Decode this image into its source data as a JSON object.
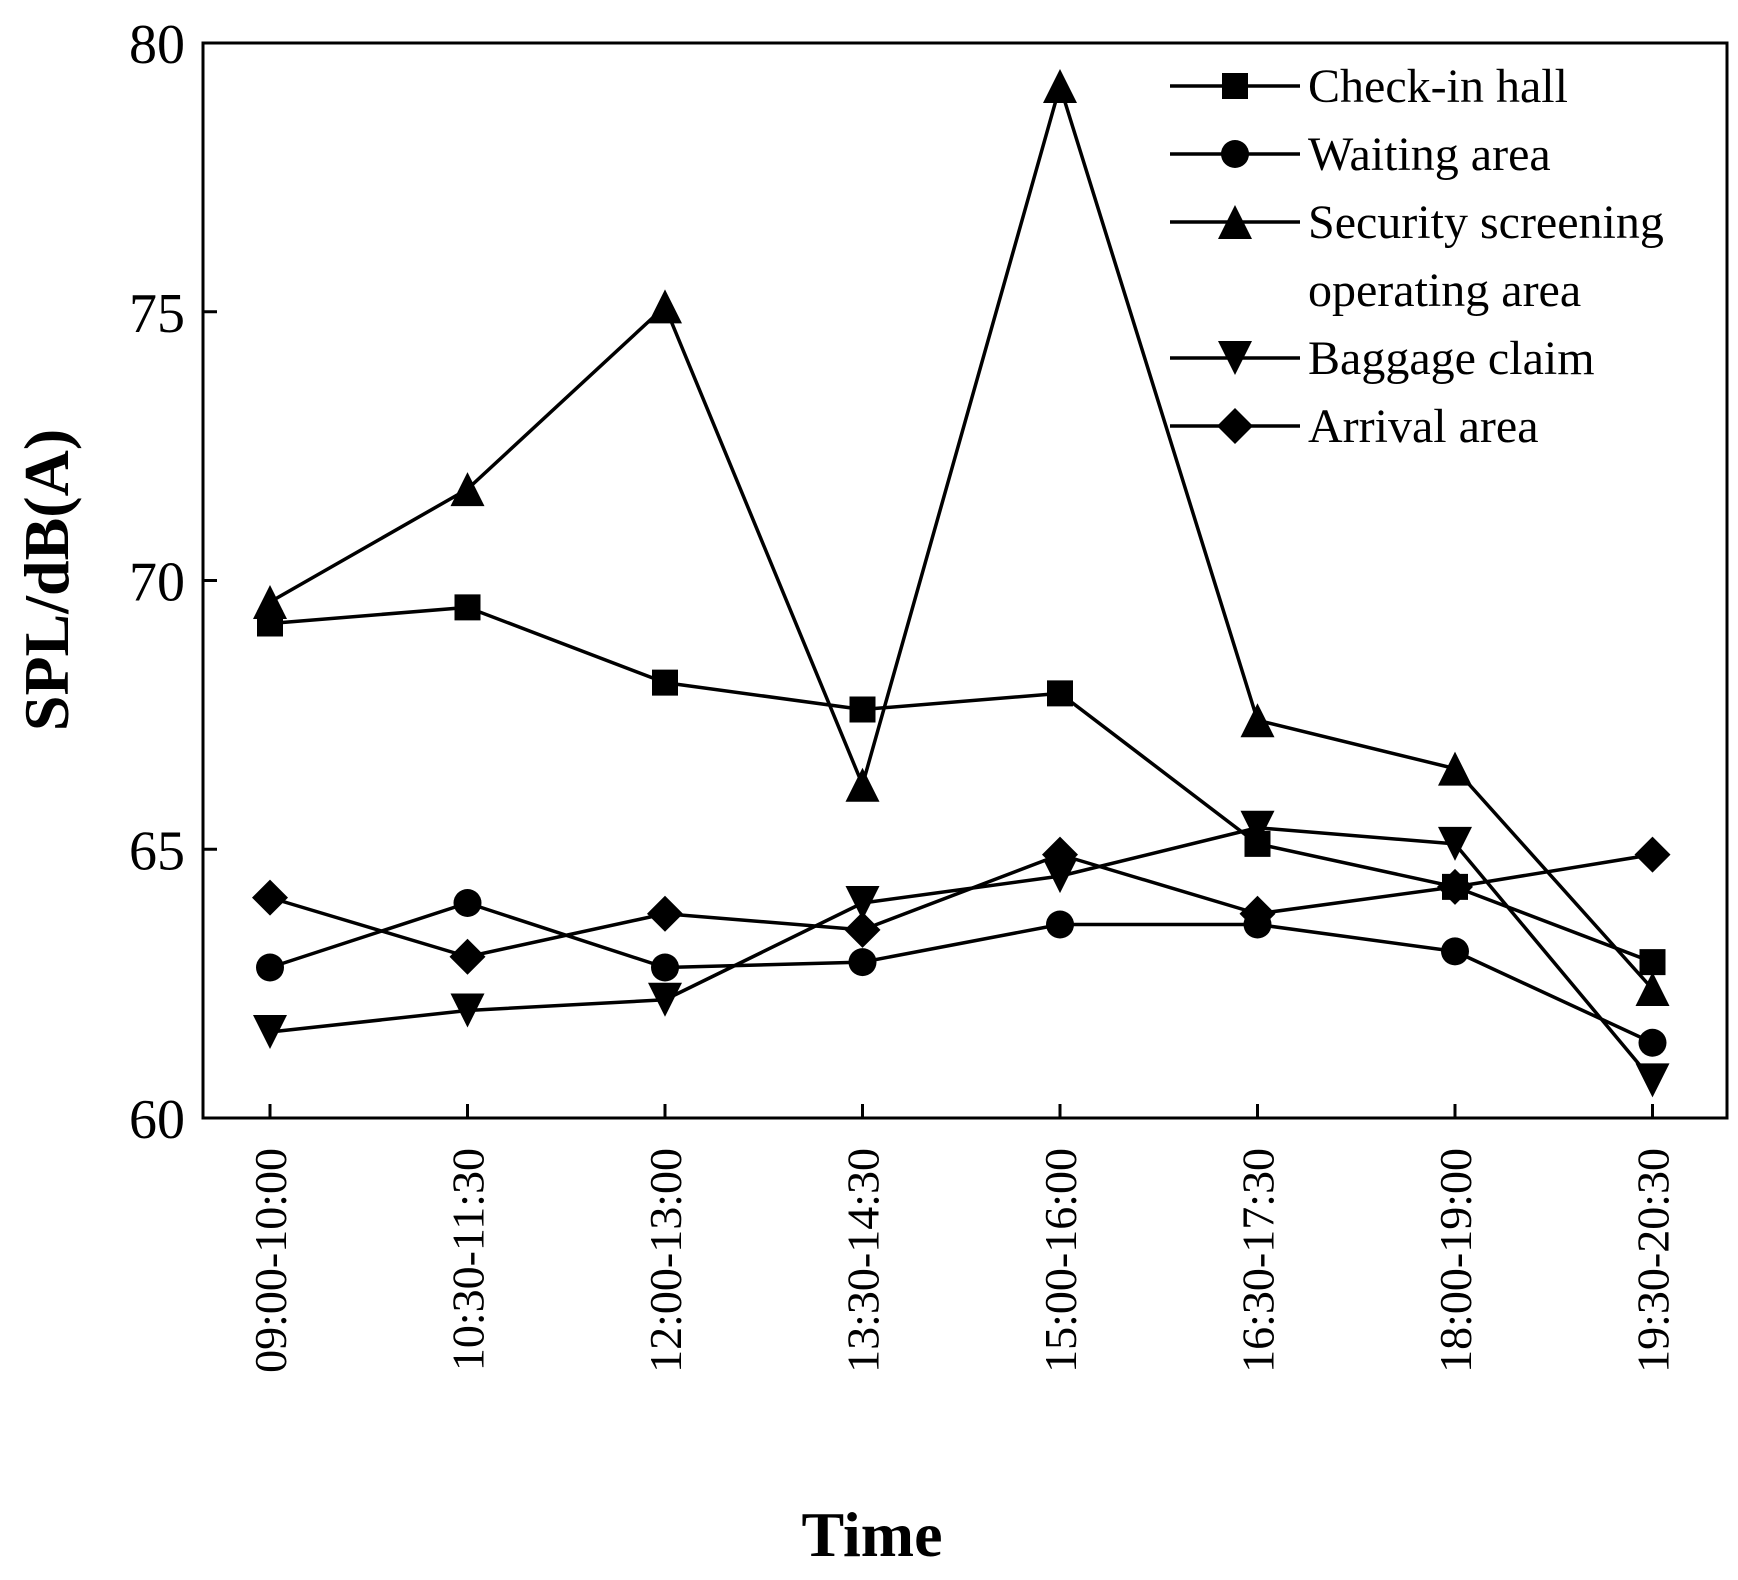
{
  "chart_data": {
    "type": "line",
    "title": "",
    "xlabel": "Time",
    "ylabel": "SPL/dB(A)",
    "ylim": [
      60,
      80
    ],
    "yticks": [
      60,
      65,
      70,
      75,
      80
    ],
    "grid": false,
    "legend_position": "top-right",
    "categories": [
      "09:00-10:00",
      "10:30-11:30",
      "12:00-13:00",
      "13:30-14:30",
      "15:00-16:00",
      "16:30-17:30",
      "18:00-19:00",
      "19:30-20:30"
    ],
    "series": [
      {
        "name": "Check-in hall",
        "marker": "square",
        "values": [
          69.2,
          69.5,
          68.1,
          67.6,
          67.9,
          65.1,
          64.3,
          62.9
        ]
      },
      {
        "name": "Waiting area",
        "marker": "circle",
        "values": [
          62.8,
          64.0,
          62.8,
          62.9,
          63.6,
          63.6,
          63.1,
          61.4
        ]
      },
      {
        "name": "Security screening operating area",
        "legend_lines": [
          "Security screening",
          "operating area"
        ],
        "marker": "triangle-up",
        "values": [
          69.6,
          71.7,
          75.1,
          66.2,
          79.2,
          67.4,
          66.5,
          62.4
        ]
      },
      {
        "name": "Baggage claim",
        "marker": "triangle-down",
        "values": [
          61.6,
          62.0,
          62.2,
          64.0,
          64.5,
          65.4,
          65.1,
          60.7
        ]
      },
      {
        "name": "Arrival area",
        "marker": "diamond",
        "values": [
          64.1,
          63.0,
          63.8,
          63.5,
          64.9,
          63.8,
          64.3,
          64.9
        ]
      }
    ]
  }
}
